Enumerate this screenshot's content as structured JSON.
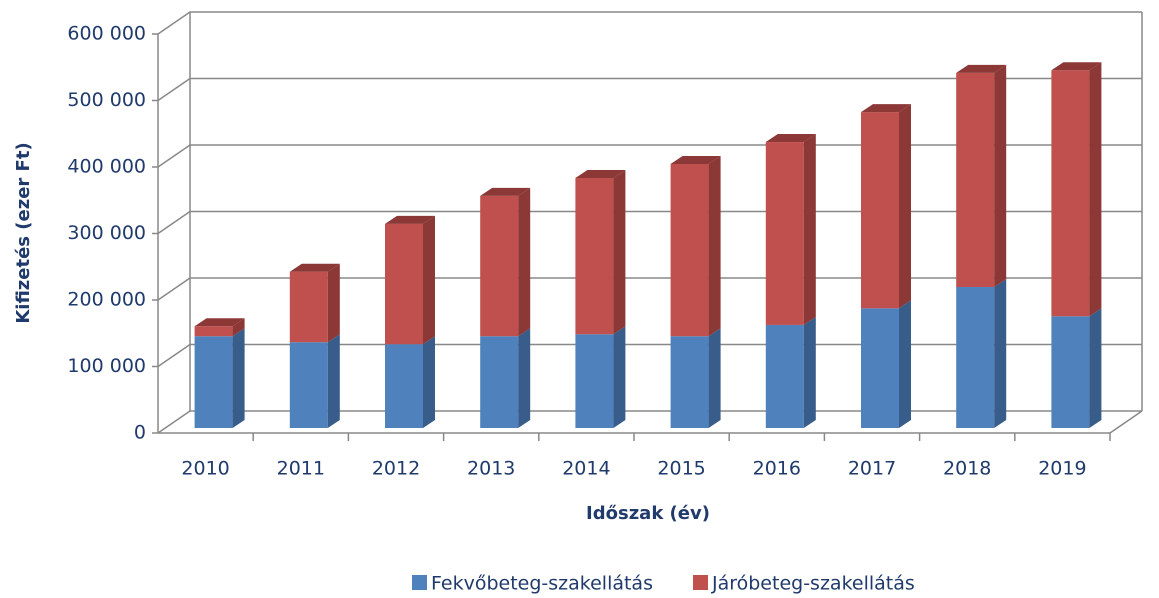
{
  "chart_data": {
    "type": "bar3d-stacked",
    "y_label": "Kifizetés (ezer Ft)",
    "x_label": "Időszak (év)",
    "categories": [
      "2010",
      "2011",
      "2012",
      "2013",
      "2014",
      "2015",
      "2016",
      "2017",
      "2018",
      "2019"
    ],
    "series": [
      {
        "name": "Fekvőbeteg-szakellátás",
        "color": "#4f81bd",
        "side": "#385d8a",
        "values": [
          138000,
          129000,
          126000,
          138000,
          141000,
          138000,
          155000,
          180000,
          212000,
          168000
        ]
      },
      {
        "name": "Járóbeteg-szakellátás",
        "color": "#c0504d",
        "side": "#8c3836",
        "values": [
          15000,
          106000,
          181000,
          211000,
          235000,
          259000,
          275000,
          295000,
          322000,
          370000
        ]
      }
    ],
    "ylim": [
      0,
      600000
    ],
    "yticks": [
      {
        "value": 0,
        "label": "0"
      },
      {
        "value": 100000,
        "label": "100 000"
      },
      {
        "value": 200000,
        "label": "200 000"
      },
      {
        "value": 300000,
        "label": "300 000"
      },
      {
        "value": 400000,
        "label": "400 000"
      },
      {
        "value": 500000,
        "label": "500 000"
      },
      {
        "value": 600000,
        "label": "600 000"
      }
    ],
    "grid": true,
    "legend": "bottom"
  }
}
